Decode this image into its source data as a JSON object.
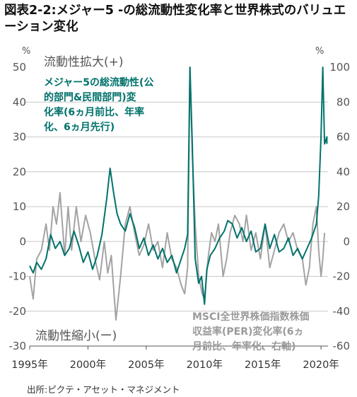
{
  "title": "図表2-2:メジャー5 -の総流動性変化率と世界株式のバリュエーション変化",
  "source": "出所:ピクテ・アセット・マネジメント",
  "chart_data": {
    "type": "line",
    "left_axis": {
      "unit": "%",
      "range": [
        -30,
        50
      ],
      "ticks": [
        "50",
        "40",
        "30",
        "20",
        "10",
        "0",
        "-10",
        "-20",
        "-30"
      ]
    },
    "right_axis": {
      "unit": "%",
      "range": [
        -60,
        100
      ],
      "ticks": [
        "100",
        "80",
        "60",
        "40",
        "20",
        "0",
        "-20",
        "-40",
        "-60"
      ]
    },
    "x_axis": {
      "range": [
        1995,
        2020.6
      ],
      "ticks": [
        "1995年",
        "2000年",
        "2005年",
        "2010年",
        "2015年",
        "2020年"
      ],
      "tick_values": [
        1995,
        2000,
        2005,
        2010,
        2015,
        2020
      ]
    },
    "annotations": {
      "top": "流動性拡大(+)",
      "bottom": "流動性縮小(ー)"
    },
    "series": [
      {
        "name": "メジャー5の総流動性(公的部門&民間部門)変化率(6ヵ月前比、年率化、6ヵ月先行)",
        "label_lines": [
          "メジャー5の総流動性(公",
          "的部門&民間部門)変",
          "化率(6ヵ月前比、年率",
          "化、6ヵ月先行)"
        ],
        "axis": "left",
        "color": "#00726b",
        "points": [
          [
            1995.0,
            -7
          ],
          [
            1995.3,
            -9
          ],
          [
            1995.6,
            -6
          ],
          [
            1996.0,
            -8
          ],
          [
            1996.4,
            -5
          ],
          [
            1996.8,
            2
          ],
          [
            1997.2,
            -2
          ],
          [
            1997.6,
            0
          ],
          [
            1998.0,
            -4
          ],
          [
            1998.4,
            -2
          ],
          [
            1998.8,
            3
          ],
          [
            1999.2,
            -1
          ],
          [
            1999.6,
            -6
          ],
          [
            2000.0,
            -3
          ],
          [
            2000.4,
            -8
          ],
          [
            2000.8,
            -4
          ],
          [
            2001.2,
            2
          ],
          [
            2001.6,
            12
          ],
          [
            2001.9,
            21
          ],
          [
            2002.2,
            14
          ],
          [
            2002.5,
            8
          ],
          [
            2002.8,
            5
          ],
          [
            2003.2,
            3
          ],
          [
            2003.6,
            8
          ],
          [
            2004.0,
            4
          ],
          [
            2004.4,
            -2
          ],
          [
            2004.8,
            1
          ],
          [
            2005.2,
            -4
          ],
          [
            2005.6,
            -1
          ],
          [
            2006.0,
            -5
          ],
          [
            2006.4,
            -2
          ],
          [
            2006.8,
            -6
          ],
          [
            2007.2,
            -4
          ],
          [
            2007.6,
            -9
          ],
          [
            2008.0,
            -5
          ],
          [
            2008.3,
            -2
          ],
          [
            2008.55,
            2
          ],
          [
            2008.75,
            50
          ],
          [
            2008.95,
            28
          ],
          [
            2009.2,
            -5
          ],
          [
            2009.5,
            -12
          ],
          [
            2009.75,
            -10
          ],
          [
            2010.0,
            -18
          ],
          [
            2010.2,
            -8
          ],
          [
            2010.5,
            -4
          ],
          [
            2010.9,
            -2
          ],
          [
            2011.3,
            1
          ],
          [
            2011.7,
            3
          ],
          [
            2012.0,
            6
          ],
          [
            2012.4,
            5
          ],
          [
            2012.8,
            1
          ],
          [
            2013.2,
            4
          ],
          [
            2013.6,
            0
          ],
          [
            2014.0,
            3
          ],
          [
            2014.4,
            -3
          ],
          [
            2014.8,
            -2
          ],
          [
            2015.2,
            5
          ],
          [
            2015.6,
            -2
          ],
          [
            2016.0,
            2
          ],
          [
            2016.4,
            -3
          ],
          [
            2016.8,
            -2
          ],
          [
            2017.2,
            1
          ],
          [
            2017.6,
            -4
          ],
          [
            2018.0,
            -2
          ],
          [
            2018.4,
            -5
          ],
          [
            2018.8,
            -2
          ],
          [
            2019.2,
            1
          ],
          [
            2019.6,
            5
          ],
          [
            2019.8,
            13
          ],
          [
            2020.0,
            30
          ],
          [
            2020.15,
            50
          ],
          [
            2020.3,
            28
          ],
          [
            2020.5,
            30
          ],
          [
            2020.5,
            28
          ]
        ]
      },
      {
        "name": "MSCI全世界株価指数株価収益率(PER)変化率(6ヵ月前比、年率化、右軸)",
        "label_lines": [
          "MSCI全世界株価指数株価",
          "収益率(PER)変化率(6ヵ",
          "月前比、年率化、右軸)"
        ],
        "axis": "right",
        "color": "#a3a3a3",
        "points": [
          [
            1995.0,
            -20
          ],
          [
            1995.3,
            -33
          ],
          [
            1995.6,
            -10
          ],
          [
            1996.0,
            -5
          ],
          [
            1996.4,
            10
          ],
          [
            1996.7,
            -5
          ],
          [
            1997.0,
            20
          ],
          [
            1997.3,
            10
          ],
          [
            1997.6,
            28
          ],
          [
            1998.0,
            -8
          ],
          [
            1998.3,
            20
          ],
          [
            1998.6,
            -5
          ],
          [
            1999.0,
            20
          ],
          [
            1999.4,
            0
          ],
          [
            1999.8,
            15
          ],
          [
            2000.2,
            5
          ],
          [
            2000.6,
            -10
          ],
          [
            2001.0,
            -22
          ],
          [
            2001.4,
            0
          ],
          [
            2001.7,
            -18
          ],
          [
            2002.0,
            -8
          ],
          [
            2002.4,
            -45
          ],
          [
            2002.8,
            -20
          ],
          [
            2003.2,
            10
          ],
          [
            2003.6,
            20
          ],
          [
            2004.0,
            5
          ],
          [
            2004.4,
            -8
          ],
          [
            2004.8,
            -2
          ],
          [
            2005.2,
            10
          ],
          [
            2005.6,
            -5
          ],
          [
            2006.0,
            0
          ],
          [
            2006.4,
            -15
          ],
          [
            2006.8,
            5
          ],
          [
            2007.2,
            -10
          ],
          [
            2007.6,
            -15
          ],
          [
            2008.0,
            -25
          ],
          [
            2008.3,
            -30
          ],
          [
            2008.55,
            -15
          ],
          [
            2008.75,
            100
          ],
          [
            2008.95,
            50
          ],
          [
            2009.2,
            10
          ],
          [
            2009.5,
            -20
          ],
          [
            2009.8,
            -30
          ],
          [
            2010.0,
            -33
          ],
          [
            2010.3,
            -10
          ],
          [
            2010.6,
            5
          ],
          [
            2010.9,
            0
          ],
          [
            2011.2,
            10
          ],
          [
            2011.6,
            -20
          ],
          [
            2011.9,
            -10
          ],
          [
            2012.2,
            5
          ],
          [
            2012.6,
            15
          ],
          [
            2013.0,
            10
          ],
          [
            2013.3,
            0
          ],
          [
            2013.6,
            15
          ],
          [
            2014.0,
            -5
          ],
          [
            2014.4,
            5
          ],
          [
            2014.8,
            -10
          ],
          [
            2015.2,
            10
          ],
          [
            2015.6,
            -15
          ],
          [
            2016.0,
            -5
          ],
          [
            2016.4,
            5
          ],
          [
            2016.8,
            10
          ],
          [
            2017.2,
            0
          ],
          [
            2017.6,
            5
          ],
          [
            2018.0,
            -5
          ],
          [
            2018.4,
            -10
          ],
          [
            2018.7,
            -25
          ],
          [
            2019.0,
            -15
          ],
          [
            2019.3,
            10
          ],
          [
            2019.6,
            20
          ],
          [
            2019.8,
            -5
          ],
          [
            2020.0,
            -20
          ],
          [
            2020.15,
            -10
          ],
          [
            2020.3,
            5
          ]
        ]
      }
    ],
    "grid": "horizontal"
  }
}
